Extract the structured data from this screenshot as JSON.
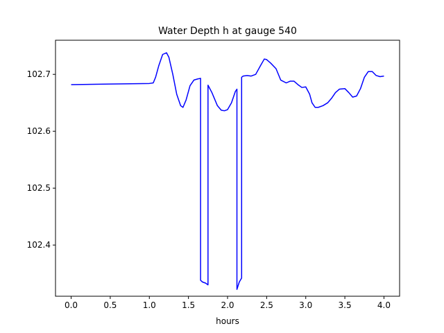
{
  "chart_data": {
    "type": "line",
    "title": "Water Depth h at gauge 540",
    "xlabel": "hours",
    "ylabel": "",
    "xlim": [
      -0.2,
      4.2
    ],
    "ylim": [
      102.31,
      102.76
    ],
    "grid": false,
    "line_color": "#0000ff",
    "x_ticks": [
      {
        "value": 0.0,
        "label": "0.0"
      },
      {
        "value": 0.5,
        "label": "0.5"
      },
      {
        "value": 1.0,
        "label": "1.0"
      },
      {
        "value": 1.5,
        "label": "1.5"
      },
      {
        "value": 2.0,
        "label": "2.0"
      },
      {
        "value": 2.5,
        "label": "2.5"
      },
      {
        "value": 3.0,
        "label": "3.0"
      },
      {
        "value": 3.5,
        "label": "3.5"
      },
      {
        "value": 4.0,
        "label": "4.0"
      }
    ],
    "y_ticks": [
      {
        "value": 102.4,
        "label": "102.4"
      },
      {
        "value": 102.5,
        "label": "102.5"
      },
      {
        "value": 102.6,
        "label": "102.6"
      },
      {
        "value": 102.7,
        "label": "102.7"
      }
    ],
    "series": [
      {
        "x": [
          0.0,
          0.5,
          1.0,
          1.05,
          1.08,
          1.12,
          1.17,
          1.22,
          1.25,
          1.3,
          1.35,
          1.4,
          1.43,
          1.47,
          1.52,
          1.57,
          1.62,
          1.655,
          1.655,
          1.68,
          1.72,
          1.75,
          1.75,
          1.8,
          1.87,
          1.92,
          1.96,
          2.0,
          2.05,
          2.1,
          2.12,
          2.12,
          2.15,
          2.18,
          2.18,
          2.2,
          2.25,
          2.3,
          2.36,
          2.42,
          2.47,
          2.5,
          2.55,
          2.62,
          2.68,
          2.75,
          2.8,
          2.85,
          2.9,
          2.95,
          3.0,
          3.05,
          3.08,
          3.12,
          3.16,
          3.22,
          3.28,
          3.33,
          3.38,
          3.43,
          3.5,
          3.55,
          3.6,
          3.65,
          3.7,
          3.75,
          3.8,
          3.85,
          3.9,
          3.95,
          4.0
        ],
        "y": [
          102.682,
          102.683,
          102.684,
          102.685,
          102.695,
          102.715,
          102.735,
          102.738,
          102.73,
          102.7,
          102.665,
          102.645,
          102.642,
          102.655,
          102.68,
          102.69,
          102.692,
          102.693,
          102.338,
          102.335,
          102.333,
          102.33,
          102.681,
          102.668,
          102.645,
          102.637,
          102.636,
          102.638,
          102.65,
          102.67,
          102.674,
          102.322,
          102.335,
          102.342,
          102.695,
          102.697,
          102.698,
          102.697,
          102.7,
          102.715,
          102.727,
          102.726,
          102.72,
          102.71,
          102.69,
          102.685,
          102.688,
          102.688,
          102.682,
          102.677,
          102.678,
          102.665,
          102.65,
          102.642,
          102.642,
          102.645,
          102.65,
          102.658,
          102.668,
          102.674,
          102.675,
          102.668,
          102.66,
          102.662,
          102.675,
          102.695,
          102.705,
          102.705,
          102.698,
          102.696,
          102.697
        ]
      }
    ]
  }
}
